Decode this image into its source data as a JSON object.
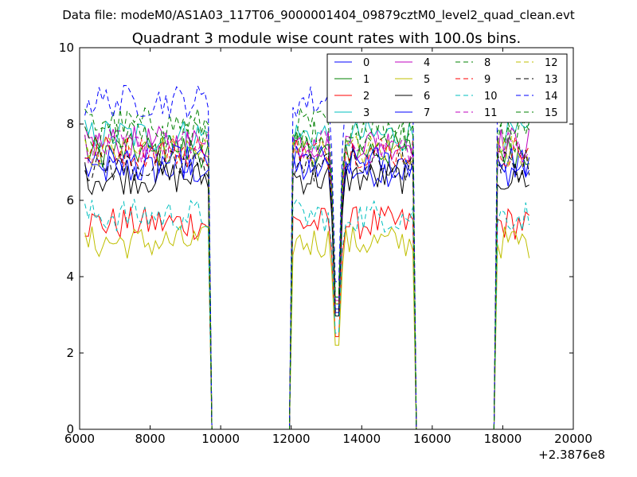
{
  "chart_data": {
    "type": "line",
    "suptitle": "Data file: modeM0/AS1A03_117T06_9000001404_09879cztM0_level2_quad_clean.evt",
    "title": "Quadrant 3 module wise count rates with 100.0s bins.",
    "xlabel": "",
    "ylabel": "",
    "x_offset_label": "+2.3876e8",
    "xlim": [
      6000,
      20000
    ],
    "ylim": [
      0,
      10
    ],
    "x_ticks": [
      6000,
      8000,
      10000,
      12000,
      14000,
      16000,
      18000,
      20000
    ],
    "y_ticks": [
      0,
      2,
      4,
      6,
      8,
      10
    ],
    "legend_position": "top-right",
    "segments": [
      {
        "start": 6150,
        "end": 9650,
        "dip": null
      },
      {
        "start": 12050,
        "end": 15450,
        "dip": 13300
      },
      {
        "start": 17850,
        "end": 18750,
        "dip": null
      }
    ],
    "series": [
      {
        "name": "0",
        "color": "#0000ff",
        "dash": "solid",
        "level": 6.8
      },
      {
        "name": "1",
        "color": "#008000",
        "dash": "solid",
        "level": 7.3
      },
      {
        "name": "2",
        "color": "#ff0000",
        "dash": "solid",
        "level": 5.4
      },
      {
        "name": "3",
        "color": "#00bfbf",
        "dash": "solid",
        "level": 7.7
      },
      {
        "name": "4",
        "color": "#bf00bf",
        "dash": "solid",
        "level": 7.5
      },
      {
        "name": "5",
        "color": "#bfbf00",
        "dash": "solid",
        "level": 4.9
      },
      {
        "name": "6",
        "color": "#000000",
        "dash": "solid",
        "level": 6.6
      },
      {
        "name": "7",
        "color": "#0000ff",
        "dash": "solid",
        "level": 7.0
      },
      {
        "name": "8",
        "color": "#008000",
        "dash": "dashed",
        "level": 8.0
      },
      {
        "name": "9",
        "color": "#ff0000",
        "dash": "dashed",
        "level": 7.3
      },
      {
        "name": "10",
        "color": "#00bfbf",
        "dash": "dashed",
        "level": 5.6
      },
      {
        "name": "11",
        "color": "#bf00bf",
        "dash": "dashed",
        "level": 7.4
      },
      {
        "name": "12",
        "color": "#bfbf00",
        "dash": "dashed",
        "level": 7.3
      },
      {
        "name": "13",
        "color": "#000000",
        "dash": "dashed",
        "level": 6.9
      },
      {
        "name": "14",
        "color": "#0000ff",
        "dash": "dashed",
        "level": 8.6
      },
      {
        "name": "15",
        "color": "#008000",
        "dash": "dashed",
        "level": 7.7
      }
    ]
  }
}
